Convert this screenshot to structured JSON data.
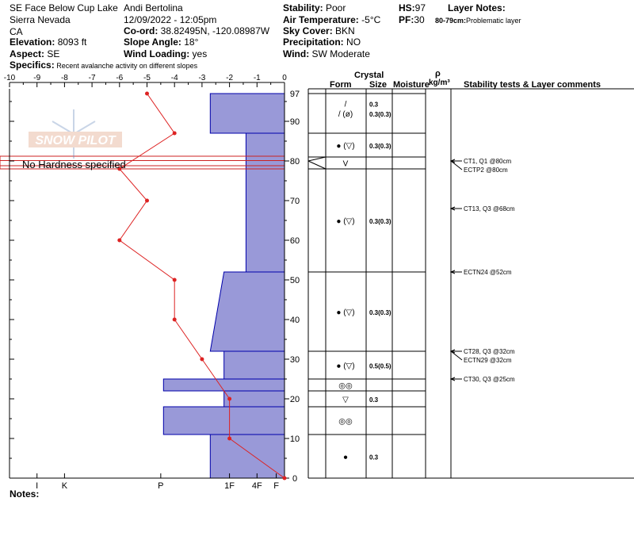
{
  "header": {
    "location": "SE Face Below Cup Lake",
    "range": "Sierra Nevada",
    "state": "CA",
    "elevation_label": "Elevation:",
    "elevation_value": " 8093 ft",
    "aspect_label": "Aspect:",
    "aspect_value": " SE",
    "specifics_label": "Specifics:",
    "specifics_value": " Recent avalanche activity on different slopes",
    "observer": "Andi Bertolina",
    "datetime": "12/09/2022 - 12:05pm",
    "coord_label": "Co-ord:",
    "coord_value": " 38.82495N, -120.08987W",
    "slope_label": "Slope Angle:",
    "slope_value": " 18°",
    "wind_loading_label": "Wind Loading:",
    "wind_loading_value": " yes",
    "stability_label": "Stability:",
    "stability_value": " Poor",
    "air_temp_label": "Air Temperature:",
    "air_temp_value": " -5°C",
    "sky_label": "Sky Cover:",
    "sky_value": " BKN",
    "precip_label": "Precipitation:",
    "precip_value": " NO",
    "wind_label": "Wind:",
    "wind_value": "  SW Moderate",
    "hs_label": "HS:",
    "hs_value": "97",
    "pf_label": "PF:",
    "pf_value": "30",
    "layer_notes_title": "Layer Notes:",
    "layer_note_depth": "80-79cm:",
    "layer_note_text": "Problematic layer"
  },
  "watermark": "SNOW PILOT",
  "no_hardness_label": "No Hardness specified",
  "notes_label": "Notes:",
  "table_headers": {
    "crystal": "Crystal",
    "form": "Form",
    "size": "Size",
    "moisture": "Moisture",
    "rho": "ρ",
    "density_unit": "kg/m³",
    "stability": "Stability tests & Layer comments"
  },
  "colors": {
    "hardness_fill": "#9999d8",
    "hardness_stroke": "#0000aa",
    "temp_line": "#dd2222",
    "highlight_layer": "#cc2222"
  },
  "chart_data": {
    "type": "snow_profile",
    "temperature_axis": {
      "ticks": [
        -10,
        -9,
        -8,
        -7,
        -6,
        -5,
        -4,
        -3,
        -2,
        -1,
        0
      ],
      "range": [
        -10,
        0
      ]
    },
    "height_axis": {
      "ticks": [
        0,
        10,
        20,
        30,
        40,
        50,
        60,
        70,
        80,
        90,
        97
      ],
      "range": [
        0,
        97
      ],
      "unit": "cm"
    },
    "hardness_axis": {
      "labels": [
        "I",
        "K",
        "P",
        "1F",
        "4F",
        "F"
      ],
      "values": [
        -9,
        -8,
        -4.5,
        -2,
        -1,
        -0.3
      ]
    },
    "temperature_profile": {
      "height": [
        0,
        10,
        20,
        30,
        40,
        50,
        60,
        70,
        78,
        87,
        97
      ],
      "temp": [
        0,
        -2,
        -2,
        -3,
        -4,
        -4,
        -6,
        -5,
        -6,
        -4,
        -5
      ]
    },
    "hardness_profile": [
      {
        "top": 97,
        "bottom": 87,
        "hardness": -2.7
      },
      {
        "top": 87,
        "bottom": 52,
        "hardness": -1.4
      },
      {
        "top": 52,
        "bottom": 32,
        "hardness_top": -2.2,
        "hardness_bottom": -2.7
      },
      {
        "top": 32,
        "bottom": 25,
        "hardness": -2.2
      },
      {
        "top": 25,
        "bottom": 22,
        "hardness": -4.4
      },
      {
        "top": 22,
        "bottom": 18,
        "hardness": -2.2
      },
      {
        "top": 18,
        "bottom": 11,
        "hardness": -4.4
      },
      {
        "top": 11,
        "bottom": 0,
        "hardness": -2.7
      }
    ],
    "highlight_layer": {
      "top": 80,
      "bottom": 79
    },
    "layer_boundaries": [
      97,
      87,
      81,
      78,
      52,
      32,
      25,
      22,
      18,
      11,
      0
    ],
    "layers": [
      {
        "center": 94.5,
        "form": "/",
        "size": "0.3"
      },
      {
        "center": 92,
        "form": "/ (ø)",
        "size": "0.3(0.3)"
      },
      {
        "center": 84,
        "form": "● (▽)",
        "size": "0.3(0.3)"
      },
      {
        "center": 79.5,
        "form": "V",
        "size": ""
      },
      {
        "center": 65,
        "form": "● (▽)",
        "size": "0.3(0.3)"
      },
      {
        "center": 42,
        "form": "● (▽)",
        "size": "0.3(0.3)"
      },
      {
        "center": 28.5,
        "form": "● (▽)",
        "size": "0.5(0.5)"
      },
      {
        "center": 23.5,
        "form": "◎◎",
        "size": ""
      },
      {
        "center": 20,
        "form": "▽",
        "size": "0.3"
      },
      {
        "center": 14.5,
        "form": "◎◎",
        "size": ""
      },
      {
        "center": 5.5,
        "form": "●",
        "size": "0.3"
      }
    ],
    "stability_tests": [
      {
        "height": 80,
        "label": "CT1, Q1 @80cm"
      },
      {
        "height": 80,
        "label": "ECTP2 @80cm",
        "offset": true
      },
      {
        "height": 68,
        "label": "CT13, Q3 @68cm"
      },
      {
        "height": 52,
        "label": "ECTN24 @52cm"
      },
      {
        "height": 32,
        "label": "CT28, Q3 @32cm"
      },
      {
        "height": 32,
        "label": "ECTN29 @32cm",
        "offset": true
      },
      {
        "height": 25,
        "label": "CT30, Q3 @25cm"
      }
    ]
  }
}
